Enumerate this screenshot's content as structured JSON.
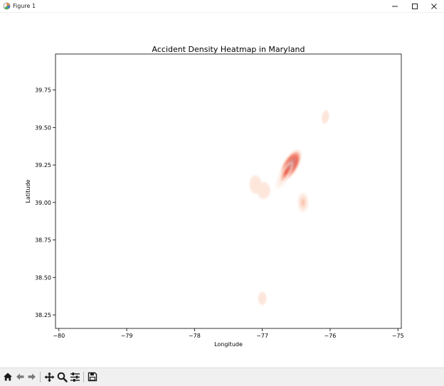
{
  "window": {
    "title": "Figure 1",
    "icon": "matplotlib-figure-icon",
    "controls": [
      "minimize-icon",
      "maximize-icon",
      "close-icon"
    ]
  },
  "toolbar": {
    "tools": [
      "home-icon",
      "back-arrow-icon",
      "forward-arrow-icon",
      "pan-icon",
      "zoom-icon",
      "configure-subplots-icon",
      "save-icon"
    ]
  },
  "colors": {
    "heat_low": "#fde4d8",
    "heat_mid": "#f0614a",
    "heat_high": "#b90f16",
    "heat_peak": "#700008"
  },
  "chart_data": {
    "type": "heatmap",
    "title": "Accident Density Heatmap in Maryland",
    "xlabel": "Longitude",
    "ylabel": "Latitude",
    "xlim": [
      -80.05,
      -74.95
    ],
    "ylim": [
      38.16,
      39.99
    ],
    "xticks": [
      -80,
      -79,
      -78,
      -77,
      -76,
      -75
    ],
    "xtick_labels": [
      "−80",
      "−79",
      "−78",
      "−77",
      "−76",
      "−75"
    ],
    "yticks": [
      38.25,
      38.5,
      38.75,
      39.0,
      39.25,
      39.5,
      39.75
    ],
    "ytick_labels": [
      "38.25",
      "38.50",
      "38.75",
      "39.00",
      "39.25",
      "39.50",
      "39.75"
    ],
    "grid": false,
    "colormap": "Reds",
    "density_clusters": [
      {
        "lon": -76.58,
        "lat": 39.25,
        "intensity": 1.0
      },
      {
        "lon": -76.65,
        "lat": 39.2,
        "intensity": 0.35
      },
      {
        "lon": -76.4,
        "lat": 39.0,
        "intensity": 0.22
      },
      {
        "lon": -77.1,
        "lat": 39.12,
        "intensity": 0.1
      },
      {
        "lon": -76.98,
        "lat": 39.08,
        "intensity": 0.1
      },
      {
        "lon": -76.07,
        "lat": 39.57,
        "intensity": 0.1
      },
      {
        "lon": -77.0,
        "lat": 38.36,
        "intensity": 0.1
      }
    ]
  }
}
